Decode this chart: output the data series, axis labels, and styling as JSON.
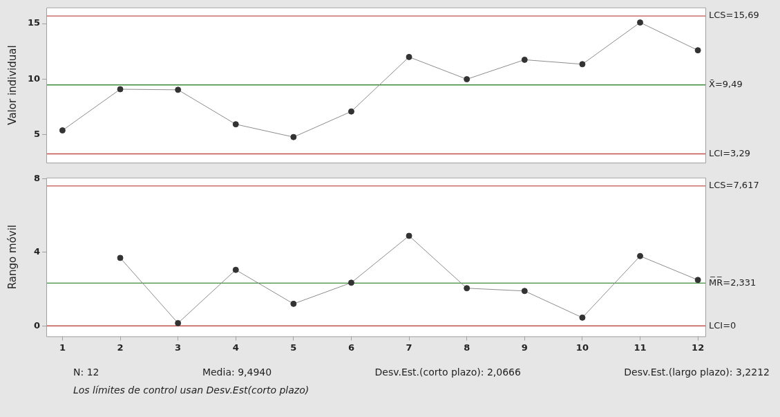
{
  "chart_data": [
    {
      "type": "line",
      "ylabel": "Valor individual",
      "x": [
        1,
        2,
        3,
        4,
        5,
        6,
        7,
        8,
        9,
        10,
        11,
        12
      ],
      "xlim": [
        0.72,
        12.13
      ],
      "xticks": [
        1,
        2,
        3,
        4,
        5,
        6,
        7,
        8,
        9,
        10,
        11,
        12
      ],
      "ylim": [
        2.5,
        16.45
      ],
      "yticks": [
        5,
        10,
        15
      ],
      "tick_labels": "y",
      "grid": false,
      "legend": false,
      "marker": "circle",
      "line_style": "solid",
      "series": [
        {
          "color": "#333333",
          "values": [
            5.4,
            9.1,
            9.05,
            5.95,
            4.8,
            7.1,
            12.0,
            10.0,
            11.75,
            11.35,
            15.1,
            12.6
          ]
        }
      ],
      "ref_lines": [
        {
          "axis": "y",
          "value": 15.69,
          "label": "LCS=15,69",
          "color": "#c0504d"
        },
        {
          "axis": "y",
          "value": 9.49,
          "label": "X̄=9,49",
          "color": "#3c8c3c"
        },
        {
          "axis": "y",
          "value": 3.29,
          "label": "LCI=3,29",
          "color": "#c0504d"
        }
      ]
    },
    {
      "type": "line",
      "ylabel": "Rango móvil",
      "xlim": [
        0.72,
        12.13
      ],
      "xticks": [
        1,
        2,
        3,
        4,
        5,
        6,
        7,
        8,
        9,
        10,
        11,
        12
      ],
      "ylim": [
        -0.57,
        8.07
      ],
      "yticks": [
        0,
        4,
        8
      ],
      "grid": false,
      "legend": false,
      "marker": "circle",
      "line_style": "solid",
      "series": [
        {
          "color": "#333333",
          "x": [
            2,
            3,
            4,
            5,
            6,
            7,
            8,
            9,
            10,
            11,
            12
          ],
          "values": [
            3.7,
            0.15,
            3.05,
            1.2,
            2.35,
            4.9,
            2.05,
            1.9,
            0.45,
            3.8,
            2.5
          ]
        }
      ],
      "ref_lines": [
        {
          "axis": "y",
          "value": 7.617,
          "label": "LCS=7,617",
          "color": "#c0504d"
        },
        {
          "axis": "y",
          "value": 2.331,
          "label": "M̅R̅=2,331",
          "color": "#3c8c3c"
        },
        {
          "axis": "y",
          "value": 0,
          "label": "LCI=0",
          "color": "#c0504d"
        }
      ],
      "annotations": [
        "N: 12",
        "Media: 9,4940",
        "Desv.Est.(corto plazo): 2,0666",
        "Desv.Est.(largo plazo): 3,2212",
        "Los límites de control usan Desv.Est(corto plazo)"
      ]
    }
  ]
}
